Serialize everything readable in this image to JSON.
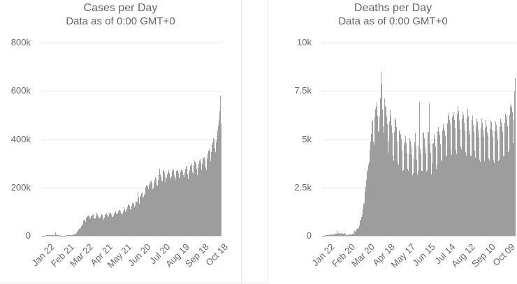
{
  "colors": {
    "bar": "#9d9d9d",
    "gridline": "#e6e6e6",
    "text": "#666666",
    "panel_border": "#e4e4e4"
  },
  "chart_data": [
    {
      "type": "bar",
      "title": "Cases per Day",
      "subtitle": "Data as of 0:00 GMT+0",
      "ylabel_ticks": [
        "0",
        "200k",
        "400k",
        "600k",
        "800k"
      ],
      "ytick_values": [
        0,
        200000,
        400000,
        600000,
        800000
      ],
      "ylim": [
        0,
        800000
      ],
      "grid": true,
      "legend": "none",
      "bar_color": "#9d9d9d",
      "xtick_labels": [
        "Jan 22",
        "Feb 21",
        "Mar 22",
        "Apr 21",
        "May 21",
        "Jun 20",
        "Jul 20",
        "Aug 19",
        "Sep 18",
        "Oct 18"
      ],
      "xtick_day_indices": [
        0,
        30,
        60,
        90,
        120,
        150,
        180,
        210,
        240,
        270
      ],
      "n_days": 280,
      "values": [
        550,
        650,
        750,
        820,
        780,
        2100,
        1900,
        2000,
        2100,
        2600,
        2400,
        2800,
        3200,
        3900,
        3700,
        3200,
        3400,
        2700,
        3000,
        2500,
        2100,
        14900,
        5100,
        2600,
        2200,
        2000,
        1900,
        1800,
        550,
        650,
        900,
        1350,
        1000,
        1250,
        950,
        1350,
        1450,
        1800,
        1750,
        2000,
        1850,
        2350,
        2350,
        2750,
        3050,
        3950,
        4050,
        4150,
        4600,
        5300,
        6800,
        7600,
        9900,
        11000,
        14000,
        16600,
        19900,
        25000,
        30100,
        32700,
        31500,
        40900,
        42900,
        49300,
        63100,
        65600,
        66800,
        62600,
        57700,
        75200,
        76900,
        80700,
        84700,
        82600,
        74600,
        71900,
        80800,
        85100,
        86000,
        89700,
        80200,
        71000,
        72600,
        71600,
        82300,
        95500,
        89600,
        81300,
        73800,
        74600,
        74300,
        82100,
        84900,
        89300,
        85700,
        71800,
        67500,
        74900,
        86900,
        88400,
        92900,
        87300,
        79300,
        75800,
        81300,
        92500,
        95600,
        95900,
        88100,
        79000,
        76700,
        84300,
        91400,
        95600,
        100700,
        92000,
        82200,
        89000,
        93500,
        99800,
        106000,
        106800,
        100400,
        91700,
        88500,
        92400,
        102300,
        116600,
        117100,
        111200,
        97200,
        102900,
        111000,
        118700,
        128600,
        129300,
        124300,
        108400,
        110300,
        123300,
        126200,
        134800,
        138000,
        132500,
        119300,
        123400,
        140700,
        142000,
        139600,
        181200,
        158700,
        131600,
        138600,
        163000,
        167800,
        177500,
        179200,
        161800,
        158000,
        170000,
        174700,
        203600,
        208200,
        212300,
        203200,
        177300,
        194500,
        211800,
        216800,
        224300,
        228500,
        219100,
        193400,
        196100,
        216200,
        229800,
        237200,
        243600,
        235900,
        209800,
        206600,
        230300,
        254400,
        276600,
        253000,
        245200,
        226800,
        224000,
        248400,
        267500,
        272800,
        262600,
        242600,
        222600,
        240400,
        253400,
        267000,
        270400,
        260200,
        241500,
        233100,
        218700,
        246800,
        267400,
        276500,
        274800,
        251200,
        229000,
        240300,
        268600,
        274000,
        269100,
        260100,
        239200,
        227500,
        243400,
        265500,
        272600,
        275300,
        265200,
        251300,
        243200,
        260600,
        278700,
        285100,
        289400,
        277800,
        254700,
        238200,
        260900,
        272100,
        289800,
        299300,
        291600,
        262000,
        257100,
        292000,
        301600,
        309200,
        305000,
        300900,
        276200,
        252600,
        280600,
        296700,
        311900,
        316800,
        302400,
        275800,
        254200,
        297200,
        319400,
        321700,
        325300,
        311500,
        282700,
        271300,
        316900,
        338000,
        351400,
        360700,
        353300,
        322800,
        307900,
        345200,
        375300,
        385900,
        404800,
        397400,
        362000,
        345600,
        387100,
        402500,
        419900,
        437200,
        455600,
        483000,
        516400,
        579600,
        465800
      ]
    },
    {
      "type": "bar",
      "title": "Deaths per Day",
      "subtitle": "Data as of 0:00 GMT+0",
      "ylabel_ticks": [
        "0",
        "2.5k",
        "5k",
        "7.5k",
        "10k"
      ],
      "ytick_values": [
        0,
        2500,
        5000,
        7500,
        10000
      ],
      "ylim": [
        0,
        10000
      ],
      "grid": true,
      "legend": "none",
      "bar_color": "#9d9d9d",
      "xtick_labels": [
        "Jan 22",
        "Feb 20",
        "Mar 20",
        "Apr 18",
        "May 17",
        "Jun 15",
        "Jul 14",
        "Aug 12",
        "Sep 10",
        "Oct 09"
      ],
      "xtick_day_indices": [
        0,
        29,
        58,
        87,
        116,
        145,
        174,
        203,
        232,
        261
      ],
      "n_days": 280,
      "values": [
        9,
        11,
        16,
        15,
        24,
        26,
        26,
        38,
        43,
        46,
        45,
        57,
        64,
        66,
        73,
        73,
        86,
        89,
        97,
        108,
        97,
        254,
        121,
        143,
        142,
        105,
        98,
        136,
        114,
        118,
        109,
        97,
        150,
        71,
        52,
        60,
        44,
        46,
        79,
        58,
        67,
        72,
        83,
        95,
        101,
        100,
        271,
        173,
        202,
        272,
        332,
        367,
        439,
        389,
        558,
        781,
        839,
        968,
        1082,
        1365,
        1666,
        1701,
        2267,
        2580,
        2885,
        3322,
        3434,
        3686,
        3814,
        4436,
        4875,
        5256,
        5870,
        5971,
        4869,
        4709,
        6134,
        6567,
        6674,
        6905,
        6205,
        5423,
        5383,
        6163,
        7123,
        8467,
        7867,
        6537,
        5661,
        5297,
        7103,
        6701,
        6638,
        6176,
        5772,
        4302,
        4878,
        5905,
        6518,
        6215,
        5701,
        5298,
        4154,
        3907,
        5366,
        5981,
        6089,
        5624,
        4866,
        3795,
        3685,
        5468,
        5361,
        5242,
        5010,
        4428,
        3340,
        3409,
        4690,
        4822,
        5166,
        4805,
        4290,
        3459,
        3364,
        4219,
        5071,
        4896,
        4607,
        4193,
        3155,
        3261,
        4016,
        4854,
        5307,
        4627,
        3921,
        3163,
        3347,
        4647,
        6934,
        4906,
        4486,
        4260,
        3343,
        3354,
        5395,
        5310,
        5067,
        4576,
        4262,
        3304,
        3401,
        5353,
        5362,
        6863,
        4771,
        4289,
        3160,
        3758,
        4756,
        4800,
        5269,
        5020,
        4605,
        3453,
        3727,
        5420,
        5646,
        5385,
        5213,
        4745,
        3918,
        3851,
        5442,
        5781,
        5601,
        5419,
        5161,
        4119,
        4150,
        5809,
        6198,
        6363,
        5999,
        5813,
        4484,
        4194,
        6130,
        6440,
        6257,
        6007,
        5550,
        4459,
        4232,
        6276,
        6726,
        6473,
        5967,
        5525,
        4610,
        4487,
        6051,
        6444,
        6236,
        5852,
        5412,
        4317,
        4163,
        6112,
        6553,
        6209,
        5477,
        5223,
        4155,
        4111,
        5994,
        6216,
        5736,
        5383,
        4414,
        4053,
        5706,
        6083,
        5932,
        5479,
        5104,
        3947,
        3822,
        5573,
        6064,
        5862,
        5443,
        5133,
        3979,
        3879,
        5575,
        5984,
        5684,
        5358,
        5181,
        4013,
        3884,
        5509,
        5959,
        5892,
        5447,
        5118,
        3914,
        3765,
        5415,
        5907,
        5723,
        5403,
        5000,
        3870,
        3950,
        5625,
        6081,
        5888,
        5719,
        5366,
        4133,
        4131,
        5836,
        6336,
        6228,
        6029,
        5680,
        4345,
        4387,
        6246,
        6727,
        6829,
        6637,
        6406,
        4810,
        5985,
        7478,
        8174
      ]
    }
  ]
}
